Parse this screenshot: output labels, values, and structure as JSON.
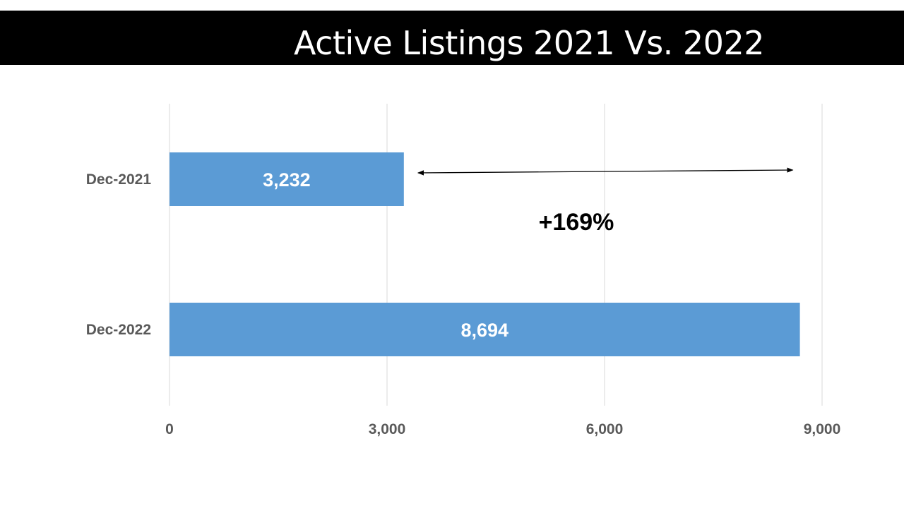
{
  "slide": {
    "title": "Active Listings 2021 Vs. 2022"
  },
  "chart_data": {
    "type": "bar",
    "orientation": "horizontal",
    "title": "Active Listings 2021 Vs. 2022",
    "categories": [
      "Dec-2021",
      "Dec-2022"
    ],
    "values": [
      3232,
      8694
    ],
    "data_labels": [
      "3,232",
      "8,694"
    ],
    "xlim": [
      0,
      9000
    ],
    "x_ticks": [
      0,
      3000,
      6000,
      9000
    ],
    "x_tick_labels": [
      "0",
      "3,000",
      "6,000",
      "9,000"
    ],
    "grid": true,
    "legend": "none",
    "annotation": {
      "text": "+169%",
      "arrow": "double-headed, from end of Dec-2021 bar to end of Dec-2022 bar"
    },
    "colors": {
      "bar": "#5b9bd5",
      "gridline": "#d9d9d9",
      "axis_text": "#595959",
      "data_label": "#ffffff",
      "annotation": "#000000"
    }
  }
}
